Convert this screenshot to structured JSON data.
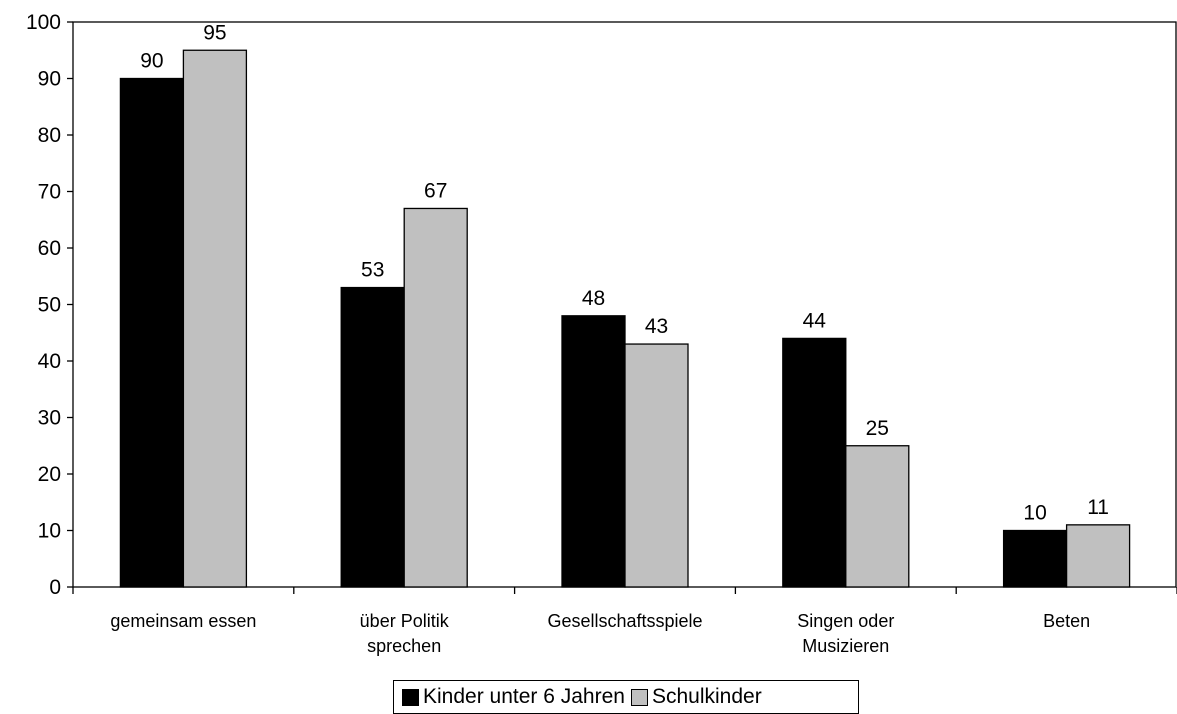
{
  "chart_data": {
    "type": "bar",
    "categories": [
      "gemeinsam essen",
      "über Politik sprechen",
      "Gesellschaftsspiele",
      "Singen oder Musizieren",
      "Beten"
    ],
    "category_lines": [
      [
        "gemeinsam essen"
      ],
      [
        "über Politik",
        "sprechen"
      ],
      [
        "Gesellschaftsspiele"
      ],
      [
        "Singen oder",
        "Musizieren"
      ],
      [
        "Beten"
      ]
    ],
    "series": [
      {
        "name": "Kinder unter 6 Jahren",
        "values": [
          90,
          53,
          48,
          44,
          10
        ],
        "color": "#000000"
      },
      {
        "name": "Schulkinder",
        "values": [
          95,
          67,
          43,
          25,
          11
        ],
        "color": "#c0c0c0"
      }
    ],
    "ylim": [
      0,
      100
    ],
    "yticks": [
      "0",
      "10",
      "20",
      "30",
      "40",
      "50",
      "60",
      "70",
      "80",
      "90",
      "100"
    ],
    "grid": false,
    "legend_position": "bottom"
  }
}
